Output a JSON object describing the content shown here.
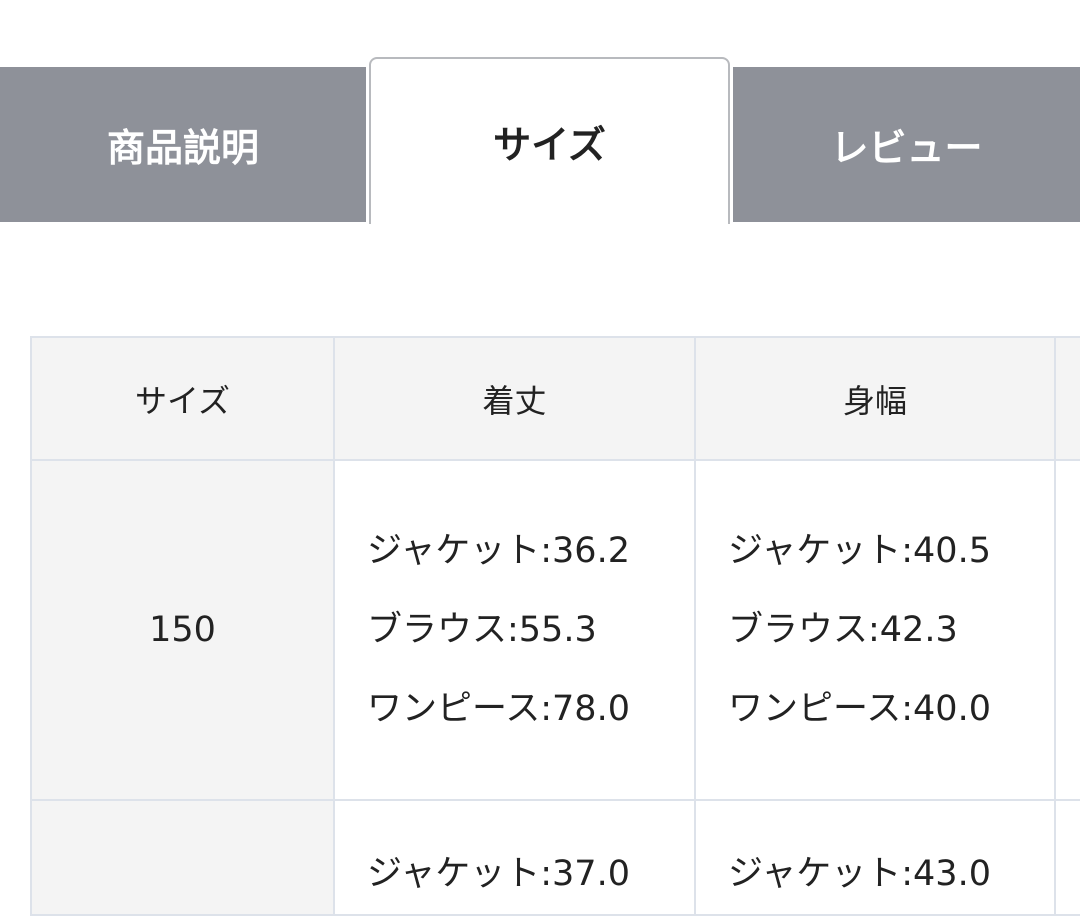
{
  "tabs": [
    {
      "label": "商品説明",
      "active": false
    },
    {
      "label": "サイズ",
      "active": true
    },
    {
      "label": "レビュー",
      "active": false
    }
  ],
  "table": {
    "headers": [
      "サイズ",
      "着丈",
      "身幅",
      ""
    ],
    "rows": [
      {
        "size": "150",
        "length": [
          "ジャケット:36.2",
          "ブラウス:55.3",
          "ワンピース:78.0"
        ],
        "width": [
          "ジャケット:40.5",
          "ブラウス:42.3",
          "ワンピース:40.0"
        ]
      },
      {
        "size": "",
        "length": [
          "ジャケット:37.0"
        ],
        "width": [
          "ジャケット:43.0"
        ]
      }
    ]
  },
  "colors": {
    "inactive_tab": "#8e9199",
    "header_bg": "#f4f4f4",
    "border": "#dde2ea"
  }
}
